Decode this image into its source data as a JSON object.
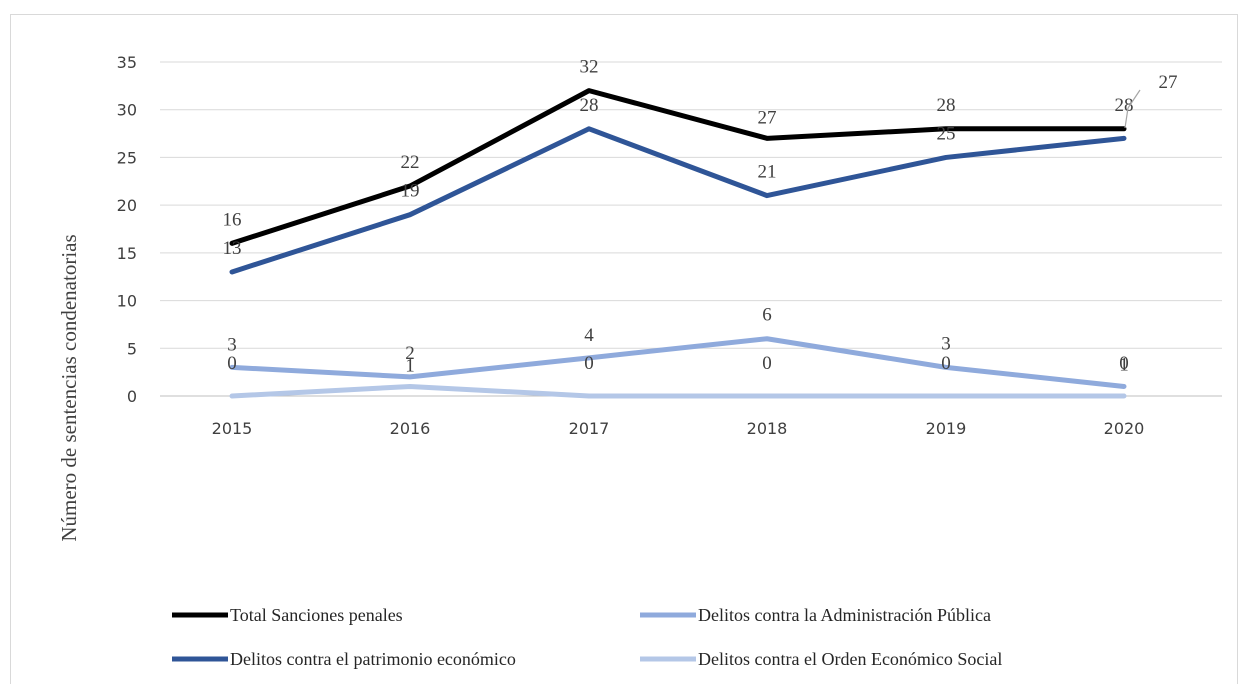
{
  "chart_data": {
    "type": "line",
    "title": "",
    "xlabel": "",
    "ylabel": "Número de sentencias condenatorias",
    "ylim": [
      0,
      35
    ],
    "yticks": [
      0,
      5,
      10,
      15,
      20,
      25,
      30,
      35
    ],
    "grid": true,
    "legend_placement": "bottom",
    "x": [
      "2015",
      "2016",
      "2017",
      "2018",
      "2019",
      "2020"
    ],
    "series": [
      {
        "name": "Total Sanciones penales",
        "color": "#000000",
        "values": [
          16,
          22,
          32,
          27,
          28,
          28
        ]
      },
      {
        "name": "Delitos contra el patrimonio económico",
        "color": "#2f5597",
        "values": [
          13,
          19,
          28,
          21,
          25,
          27
        ]
      },
      {
        "name": "Delitos contra la Administración Pública",
        "color": "#8faadc",
        "values": [
          3,
          2,
          4,
          6,
          3,
          1
        ]
      },
      {
        "name": "Delitos contra el Orden Económico Social",
        "color": "#b4c7e7",
        "values": [
          0,
          1,
          0,
          0,
          0,
          0
        ]
      }
    ]
  }
}
